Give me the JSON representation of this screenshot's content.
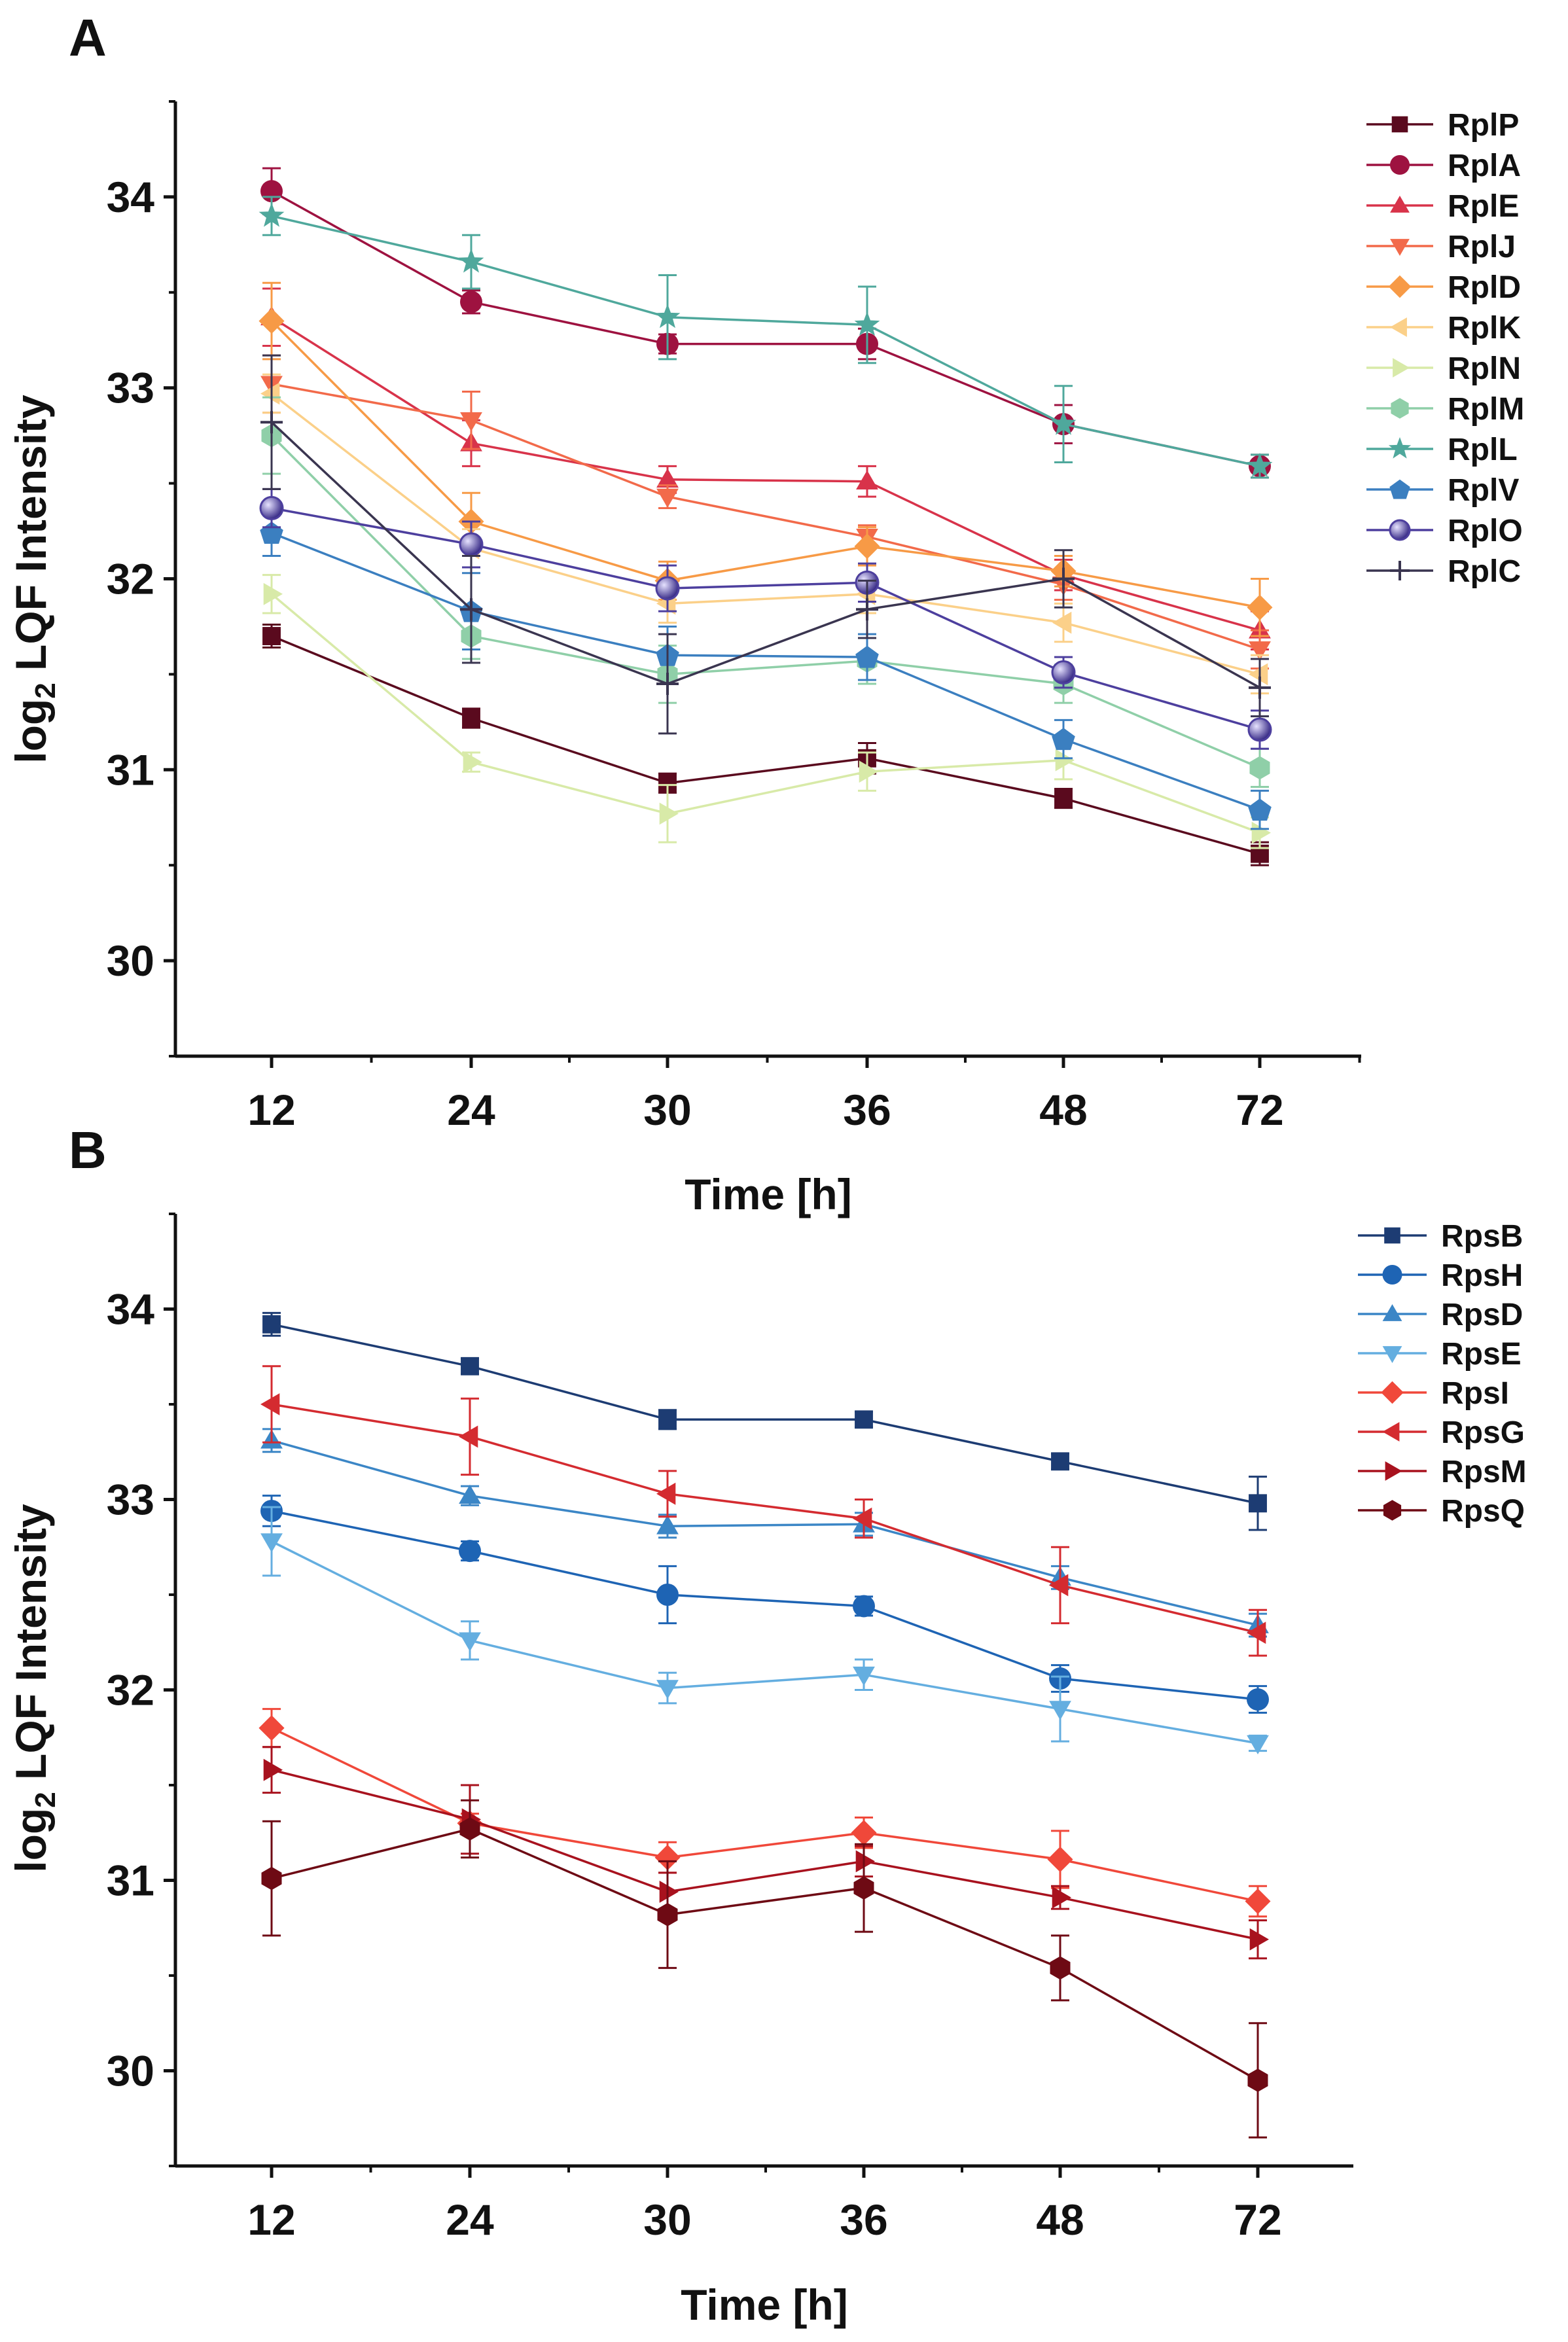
{
  "chart_data": [
    {
      "type": "line",
      "panel": "A",
      "xlabel": "Time [h]",
      "ylabel": "log2 LQF Intensity",
      "ylabel_main": "log",
      "ylabel_sub": "2",
      "ylabel_rest": " LQF Intensity",
      "categories": [
        "12",
        "24",
        "30",
        "36",
        "48",
        "72"
      ],
      "ylim": [
        29.5,
        34.5
      ],
      "yticks": [
        "30",
        "31",
        "32",
        "33",
        "34"
      ],
      "legend_position": "top-right",
      "series": [
        {
          "name": "RplP",
          "color": "#5a0a1e",
          "marker": "square",
          "values": [
            31.7,
            31.27,
            30.93,
            31.06,
            30.85,
            30.56
          ],
          "errors": [
            0.06,
            0.05,
            0.05,
            0.08,
            0.05,
            0.06
          ]
        },
        {
          "name": "RplA",
          "color": "#9e1240",
          "marker": "circle",
          "values": [
            34.03,
            33.45,
            33.23,
            33.23,
            32.81,
            32.59
          ],
          "errors": [
            0.12,
            0.06,
            0.05,
            0.08,
            0.1,
            0.06
          ]
        },
        {
          "name": "RplE",
          "color": "#d8334a",
          "marker": "triangle-up",
          "values": [
            33.37,
            32.71,
            32.52,
            32.51,
            32.02,
            31.73
          ],
          "errors": [
            0.15,
            0.12,
            0.07,
            0.08,
            0.08,
            0.1
          ]
        },
        {
          "name": "RplJ",
          "color": "#f26a4a",
          "marker": "triangle-down",
          "values": [
            33.02,
            32.83,
            32.43,
            32.22,
            31.97,
            31.63
          ],
          "errors": [
            0.15,
            0.15,
            0.06,
            0.06,
            0.08,
            0.1
          ]
        },
        {
          "name": "RplD",
          "color": "#f79a46",
          "marker": "diamond",
          "values": [
            33.35,
            32.3,
            31.99,
            32.17,
            32.04,
            31.85
          ],
          "errors": [
            0.2,
            0.15,
            0.1,
            0.1,
            0.08,
            0.15
          ]
        },
        {
          "name": "RplK",
          "color": "#fbd089",
          "marker": "triangle-left",
          "values": [
            32.97,
            32.16,
            31.87,
            31.92,
            31.77,
            31.5
          ],
          "errors": [
            0.1,
            0.1,
            0.1,
            0.1,
            0.1,
            0.1
          ]
        },
        {
          "name": "RplN",
          "color": "#d8eaa8",
          "marker": "triangle-right",
          "values": [
            31.92,
            31.04,
            30.77,
            30.99,
            31.05,
            30.67
          ],
          "errors": [
            0.1,
            0.05,
            0.15,
            0.1,
            0.1,
            0.08
          ]
        },
        {
          "name": "RplM",
          "color": "#8fcfa8",
          "marker": "hexagon",
          "values": [
            32.75,
            31.7,
            31.5,
            31.57,
            31.45,
            31.01
          ],
          "errors": [
            0.2,
            0.12,
            0.15,
            0.12,
            0.1,
            0.1
          ]
        },
        {
          "name": "RplL",
          "color": "#4fa89c",
          "marker": "star",
          "values": [
            33.9,
            33.66,
            33.37,
            33.33,
            32.81,
            32.59
          ],
          "errors": [
            0.1,
            0.14,
            0.22,
            0.2,
            0.2,
            0.06
          ]
        },
        {
          "name": "RplV",
          "color": "#3b7fc0",
          "marker": "pentagon",
          "values": [
            32.24,
            31.83,
            31.6,
            31.59,
            31.16,
            30.79
          ],
          "errors": [
            0.12,
            0.2,
            0.15,
            0.12,
            0.1,
            0.1
          ]
        },
        {
          "name": "RplO",
          "color": "#4d3f9e",
          "marker": "sphere",
          "values": [
            32.37,
            32.18,
            31.95,
            31.98,
            31.51,
            31.21
          ],
          "errors": [
            0.1,
            0.12,
            0.12,
            0.1,
            0.08,
            0.1
          ]
        },
        {
          "name": "RplC",
          "color": "#3a3550",
          "marker": "plus",
          "values": [
            32.82,
            31.84,
            31.45,
            31.84,
            32.0,
            31.43
          ],
          "errors": [
            0.35,
            0.28,
            0.26,
            0.15,
            0.15,
            0.15
          ]
        }
      ]
    },
    {
      "type": "line",
      "panel": "B",
      "xlabel": "Time [h]",
      "ylabel": "log2 LQF Intensity",
      "ylabel_main": "log",
      "ylabel_sub": "2",
      "ylabel_rest": " LQF Intensity",
      "categories": [
        "12",
        "24",
        "30",
        "36",
        "48",
        "72"
      ],
      "ylim": [
        29.5,
        34.5
      ],
      "yticks": [
        "30",
        "31",
        "32",
        "33",
        "34"
      ],
      "legend_position": "top-right",
      "series": [
        {
          "name": "RpsB",
          "color": "#1d3c73",
          "marker": "square",
          "values": [
            33.92,
            33.7,
            33.42,
            33.42,
            33.2,
            32.98
          ],
          "errors": [
            0.06,
            0.04,
            0.05,
            0.04,
            0.04,
            0.14
          ]
        },
        {
          "name": "RpsH",
          "color": "#1e64b4",
          "marker": "circle",
          "values": [
            32.94,
            32.73,
            32.5,
            32.44,
            32.06,
            31.95
          ],
          "errors": [
            0.08,
            0.05,
            0.15,
            0.05,
            0.07,
            0.07
          ]
        },
        {
          "name": "RpsD",
          "color": "#3b86c6",
          "marker": "triangle-up",
          "values": [
            33.31,
            33.02,
            32.86,
            32.87,
            32.59,
            32.34
          ],
          "errors": [
            0.06,
            0.05,
            0.06,
            0.06,
            0.06,
            0.06
          ]
        },
        {
          "name": "RpsE",
          "color": "#64aee0",
          "marker": "triangle-down",
          "values": [
            32.78,
            32.26,
            32.01,
            32.08,
            31.9,
            31.72
          ],
          "errors": [
            0.18,
            0.1,
            0.08,
            0.08,
            0.17,
            0.04
          ]
        },
        {
          "name": "RpsI",
          "color": "#f0483a",
          "marker": "diamond",
          "values": [
            31.8,
            31.3,
            31.12,
            31.25,
            31.11,
            30.89
          ],
          "errors": [
            0.1,
            0.05,
            0.08,
            0.08,
            0.15,
            0.08
          ]
        },
        {
          "name": "RpsG",
          "color": "#d42b30",
          "marker": "triangle-left",
          "values": [
            33.5,
            33.33,
            33.03,
            32.9,
            32.55,
            32.3
          ],
          "errors": [
            0.2,
            0.2,
            0.12,
            0.1,
            0.2,
            0.12
          ]
        },
        {
          "name": "RpsM",
          "color": "#a8121e",
          "marker": "triangle-right",
          "values": [
            31.58,
            31.32,
            30.94,
            31.1,
            30.91,
            30.69
          ],
          "errors": [
            0.12,
            0.18,
            0.1,
            0.08,
            0.06,
            0.1
          ]
        },
        {
          "name": "RpsQ",
          "color": "#6e0a14",
          "marker": "hexagon",
          "values": [
            31.01,
            31.27,
            30.82,
            30.96,
            30.54,
            29.95
          ],
          "errors": [
            0.3,
            0.15,
            0.28,
            0.23,
            0.17,
            0.3
          ]
        }
      ]
    }
  ]
}
